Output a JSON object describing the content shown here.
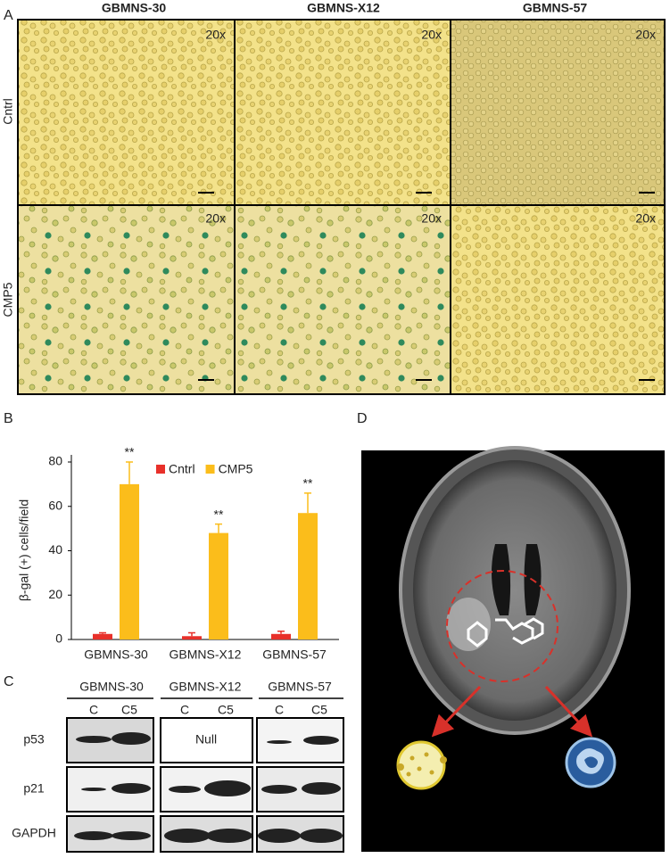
{
  "panel_labels": [
    "A",
    "B",
    "C",
    "D"
  ],
  "panel_a": {
    "columns": [
      "GBMNS-30",
      "GBMNS-X12",
      "GBMNS-57"
    ],
    "rows": [
      "Cntrl",
      "CMP5"
    ],
    "magnification": [
      "20x",
      "20x",
      "20x",
      "20x",
      "20x",
      "20x"
    ]
  },
  "chart_data": {
    "type": "bar",
    "y_label": "β-gal (+) cells/field",
    "categories": [
      "GBMNS-30",
      "GBMNS-X12",
      "GBMNS-57"
    ],
    "series": [
      {
        "name": "Cntrl",
        "color": "#e8302a",
        "values": [
          2.5,
          1.5,
          2.5
        ],
        "errors": [
          0.5,
          1.5,
          1.2
        ]
      },
      {
        "name": "CMP5",
        "color": "#fbbd1b",
        "values": [
          70,
          48,
          57
        ],
        "errors": [
          10,
          4,
          9
        ]
      }
    ],
    "annotations": [
      "**",
      "**",
      "**"
    ],
    "ylim": [
      0,
      80
    ],
    "yticks": [
      0,
      20,
      40,
      60,
      80
    ],
    "legend": "top"
  },
  "panel_c": {
    "columns": [
      "GBMNS-30",
      "GBMNS-X12",
      "GBMNS-57"
    ],
    "lanes": [
      "C",
      "C5",
      "C",
      "C5",
      "C",
      "C5"
    ],
    "proteins": [
      "p53",
      "p21",
      "GAPDH"
    ],
    "note": "Null"
  }
}
